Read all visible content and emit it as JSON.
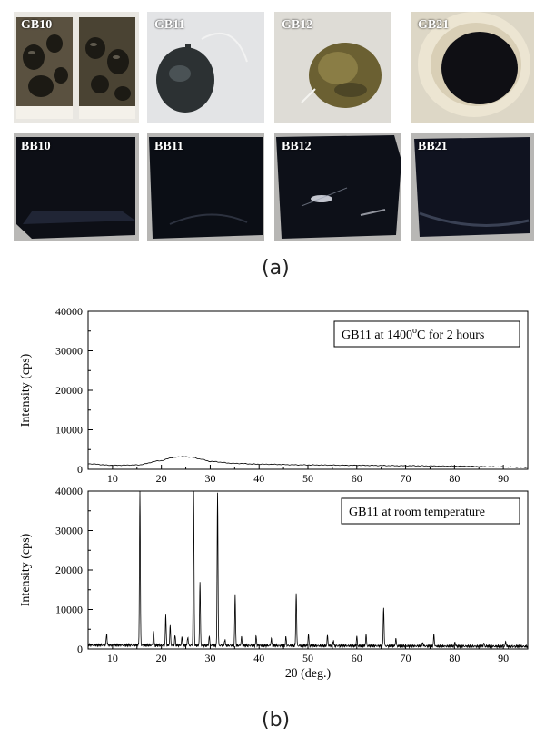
{
  "figure": {
    "panel_a": {
      "caption": "(a)",
      "photos_top": [
        {
          "label": "GB10"
        },
        {
          "label": "GB11"
        },
        {
          "label": "GB12"
        },
        {
          "label": "GB21"
        }
      ],
      "photos_bottom": [
        {
          "label": "BB10"
        },
        {
          "label": "BB11"
        },
        {
          "label": "BB12"
        },
        {
          "label": "BB21"
        }
      ]
    },
    "panel_b": {
      "caption": "(b)",
      "xlabel": "2θ (deg.)",
      "ylabel": "Intensity (cps)"
    }
  },
  "chart_data": [
    {
      "type": "line",
      "legend": "GB11 at 1400°C for 2 hours",
      "legend_parts": {
        "prefix": "GB11 at 1400",
        "sup": "o",
        "suffix": "C for 2 hours"
      },
      "xlim": [
        5,
        95
      ],
      "ylim": [
        0,
        40000
      ],
      "xticks": [
        10,
        20,
        30,
        40,
        50,
        60,
        70,
        80,
        90
      ],
      "yticks": [
        0,
        10000,
        20000,
        30000,
        40000
      ],
      "ylabel": "Intensity (cps)",
      "x": [
        5,
        10,
        15,
        20,
        22,
        24,
        26,
        28,
        30,
        35,
        40,
        50,
        60,
        70,
        80,
        90,
        95
      ],
      "y": [
        1400,
        1000,
        1100,
        2200,
        2900,
        3200,
        3100,
        2600,
        2000,
        1500,
        1300,
        1100,
        1000,
        900,
        800,
        600,
        500
      ]
    },
    {
      "type": "line",
      "legend": "GB11 at room temperature",
      "xlim": [
        5,
        95
      ],
      "ylim": [
        0,
        40000
      ],
      "xticks": [
        10,
        20,
        30,
        40,
        50,
        60,
        70,
        80,
        90
      ],
      "yticks": [
        0,
        10000,
        20000,
        30000,
        40000
      ],
      "xlabel": "2θ (deg.)",
      "ylabel": "Intensity (cps)",
      "baseline": 1000,
      "peaks": [
        {
          "x": 8.8,
          "y": 4000
        },
        {
          "x": 15.6,
          "y": 40000
        },
        {
          "x": 18.4,
          "y": 4800
        },
        {
          "x": 20.9,
          "y": 8500
        },
        {
          "x": 21.8,
          "y": 6000
        },
        {
          "x": 22.8,
          "y": 3500
        },
        {
          "x": 24.2,
          "y": 3000
        },
        {
          "x": 25.4,
          "y": 3200
        },
        {
          "x": 26.6,
          "y": 40000
        },
        {
          "x": 27.9,
          "y": 17000
        },
        {
          "x": 29.8,
          "y": 3300
        },
        {
          "x": 31.5,
          "y": 40000
        },
        {
          "x": 33.0,
          "y": 2600
        },
        {
          "x": 35.1,
          "y": 13500
        },
        {
          "x": 36.4,
          "y": 3200
        },
        {
          "x": 39.4,
          "y": 3400
        },
        {
          "x": 42.5,
          "y": 2800
        },
        {
          "x": 45.5,
          "y": 3200
        },
        {
          "x": 47.6,
          "y": 14500
        },
        {
          "x": 50.1,
          "y": 3900
        },
        {
          "x": 54.0,
          "y": 3600
        },
        {
          "x": 55.2,
          "y": 2400
        },
        {
          "x": 60.0,
          "y": 3500
        },
        {
          "x": 61.9,
          "y": 3900
        },
        {
          "x": 65.5,
          "y": 11000
        },
        {
          "x": 68.0,
          "y": 3000
        },
        {
          "x": 73.5,
          "y": 2000
        },
        {
          "x": 75.8,
          "y": 4000
        },
        {
          "x": 80.1,
          "y": 2100
        },
        {
          "x": 86.0,
          "y": 1800
        },
        {
          "x": 90.5,
          "y": 2300
        }
      ]
    }
  ]
}
